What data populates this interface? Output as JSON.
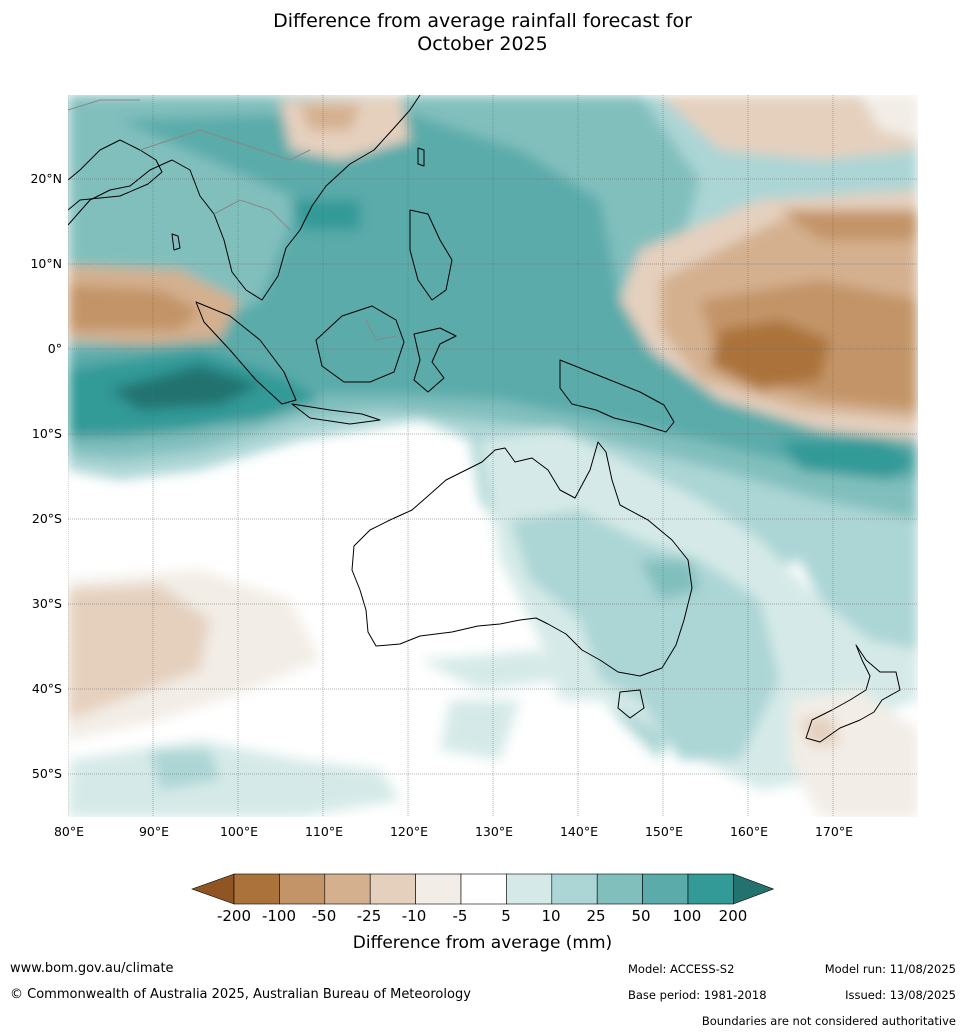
{
  "title_line1": "Difference from average rainfall forecast for",
  "title_line2": "October 2025",
  "lat_labels": [
    "20°N",
    "10°N",
    "0°",
    "10°S",
    "20°S",
    "30°S",
    "40°S",
    "50°S"
  ],
  "lon_labels": [
    "80°E",
    "90°E",
    "100°E",
    "110°E",
    "120°E",
    "130°E",
    "140°E",
    "150°E",
    "160°E",
    "170°E"
  ],
  "legend": {
    "title": "Difference from average (mm)",
    "ticks": [
      "-200",
      "-100",
      "-50",
      "-25",
      "-10",
      "-5",
      "5",
      "10",
      "25",
      "50",
      "100",
      "200"
    ],
    "colors": [
      "#8f5624",
      "#ab733b",
      "#c39467",
      "#d4b08f",
      "#e5d0be",
      "#f2ede6",
      "#ffffff",
      "#d5eae8",
      "#acd5d5",
      "#81bfbd",
      "#5aabaa",
      "#339a97",
      "#24726f"
    ]
  },
  "footer": {
    "website": "www.bom.gov.au/climate",
    "copyright": "© Commonwealth of Australia 2025, Australian Bureau of Meteorology",
    "model": "Model: ACCESS-S2",
    "base_period": "Base period: 1981-2018",
    "model_run": "Model run: 11/08/2025",
    "issued": "Issued: 13/08/2025",
    "boundaries": "Boundaries are not considered authoritative"
  },
  "map_extent": {
    "lon": [
      79.5,
      179.5
    ],
    "lat": [
      -55,
      30
    ]
  }
}
